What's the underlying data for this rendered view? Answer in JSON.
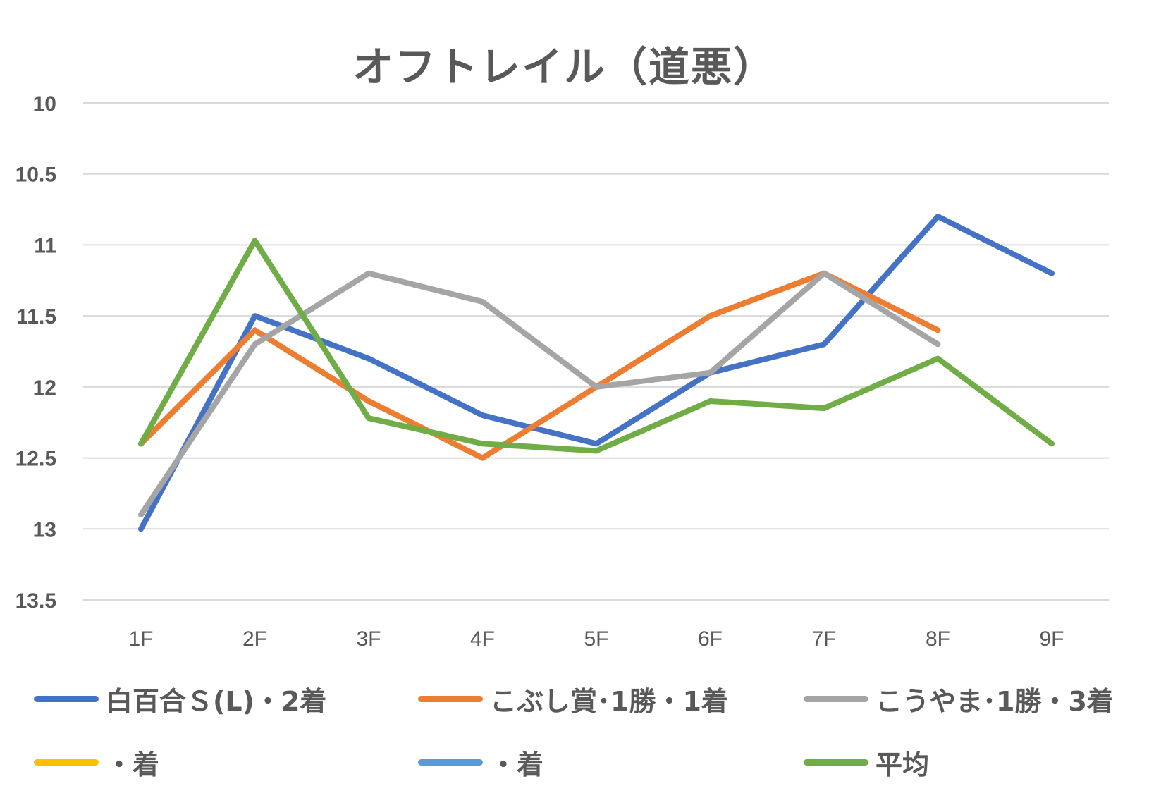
{
  "chart_data": {
    "type": "line",
    "title": "オフトレイル（道悪）",
    "categories": [
      "1F",
      "2F",
      "3F",
      "4F",
      "5F",
      "6F",
      "7F",
      "8F",
      "9F"
    ],
    "ylim": [
      13.5,
      10
    ],
    "y_reversed": true,
    "yticks": [
      "10",
      "10.5",
      "11",
      "11.5",
      "12",
      "12.5",
      "13",
      "13.5"
    ],
    "grid": true,
    "legend_position": "bottom",
    "series": [
      {
        "name": "白百合Ｓ(L)・2着",
        "color": "#4472C4",
        "values": [
          13.0,
          11.5,
          11.8,
          12.2,
          12.4,
          11.9,
          11.7,
          10.8,
          11.2
        ]
      },
      {
        "name": "こぶし賞･1勝・1着",
        "color": "#ED7D31",
        "values": [
          12.4,
          11.6,
          12.1,
          12.5,
          12.0,
          11.5,
          11.2,
          11.6,
          null
        ]
      },
      {
        "name": "こうやま･1勝・3着",
        "color": "#A5A5A5",
        "values": [
          12.9,
          11.7,
          11.2,
          11.4,
          12.0,
          11.9,
          11.2,
          11.7,
          null
        ]
      },
      {
        "name": "・着",
        "color": "#FFC000",
        "values": [
          null,
          null,
          null,
          null,
          null,
          null,
          null,
          null,
          null
        ]
      },
      {
        "name": "・着",
        "color": "#5B9BD5",
        "values": [
          null,
          null,
          null,
          null,
          null,
          null,
          null,
          null,
          null
        ]
      },
      {
        "name": "平均",
        "color": "#70AD47",
        "values": [
          12.4,
          10.97,
          12.22,
          12.4,
          12.45,
          12.1,
          12.15,
          11.8,
          12.4
        ]
      }
    ]
  }
}
